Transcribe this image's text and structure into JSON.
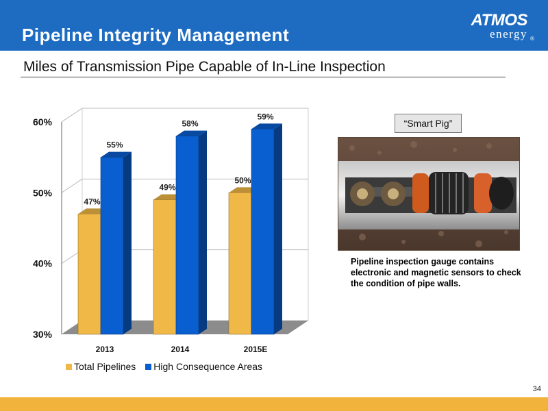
{
  "header": {
    "title": "Pipeline Integrity Management"
  },
  "logo": {
    "line1": "ATMOS",
    "line2": "energy",
    "registered": "®"
  },
  "subtitle": "Miles of Transmission Pipe Capable of In-Line Inspection",
  "side_panel": {
    "label": "“Smart Pig”",
    "caption": "Pipeline inspection gauge contains electronic and magnetic sensors to check the condition of pipe walls."
  },
  "page_number": "34",
  "colors": {
    "header": "#1d6cc2",
    "total_pipelines": "#f0b847",
    "high_consequence": "#0a5fd0",
    "footer": "#f2b33d"
  },
  "chart_data": {
    "type": "bar",
    "categories": [
      "2013",
      "2014",
      "2015E"
    ],
    "series": [
      {
        "name": "Total Pipelines",
        "values": [
          47,
          49,
          50
        ],
        "labels": [
          "47%",
          "49%",
          "50%"
        ]
      },
      {
        "name": "High Consequence Areas",
        "values": [
          55,
          58,
          59
        ],
        "labels": [
          "55%",
          "58%",
          "59%"
        ]
      }
    ],
    "ylim": [
      30,
      60
    ],
    "yticks": [
      30,
      40,
      50,
      60
    ],
    "ytick_labels": [
      "30%",
      "40%",
      "50%",
      "60%"
    ],
    "grid": true,
    "legend_position": "bottom",
    "style": "3d"
  }
}
